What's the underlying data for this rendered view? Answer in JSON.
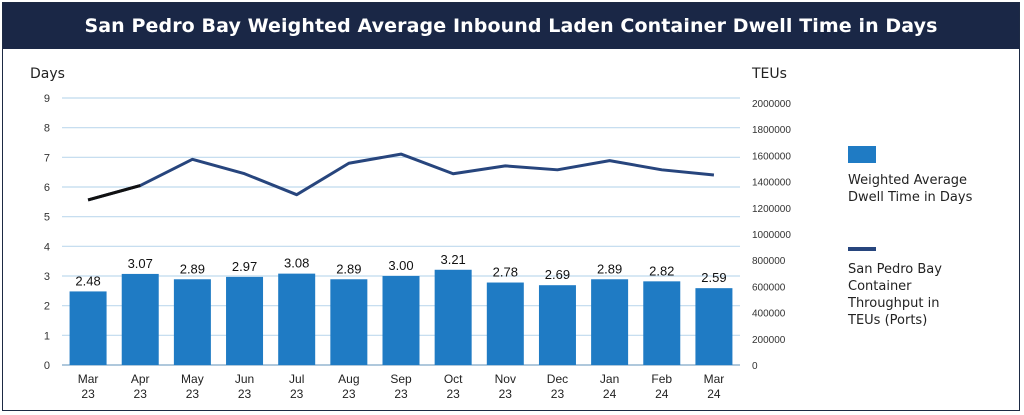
{
  "chart_data": {
    "type": "bar",
    "title": "San Pedro Bay Weighted Average Inbound Laden Container Dwell Time in Days",
    "ylabel_left": "Days",
    "ylabel_right": "TEUs",
    "ylim_left": [
      0,
      9
    ],
    "ylim_right": [
      0,
      2000000
    ],
    "left_ticks": [
      "0",
      "1",
      "2",
      "3",
      "4",
      "5",
      "6",
      "7",
      "8",
      "9"
    ],
    "right_ticks": [
      "0",
      "200000",
      "400000",
      "600000",
      "800000",
      "1000000",
      "1200000",
      "1400000",
      "1600000",
      "1800000",
      "2000000"
    ],
    "categories": [
      [
        "Mar",
        "23"
      ],
      [
        "Apr",
        "23"
      ],
      [
        "May",
        "23"
      ],
      [
        "Jun",
        "23"
      ],
      [
        "Jul",
        "23"
      ],
      [
        "Aug",
        "23"
      ],
      [
        "Sep",
        "23"
      ],
      [
        "Oct",
        "23"
      ],
      [
        "Nov",
        "23"
      ],
      [
        "Dec",
        "23"
      ],
      [
        "Jan",
        "24"
      ],
      [
        "Feb",
        "24"
      ],
      [
        "Mar",
        "24"
      ]
    ],
    "series": [
      {
        "name": "Weighted Average Dwell Time in Days",
        "type": "bar",
        "axis": "left",
        "color": "#1f7bc4",
        "values": [
          2.48,
          3.07,
          2.89,
          2.97,
          3.08,
          2.89,
          3.0,
          3.21,
          2.78,
          2.69,
          2.89,
          2.82,
          2.59
        ],
        "labels": [
          "2.48",
          "3.07",
          "2.89",
          "2.97",
          "3.08",
          "2.89",
          "3.00",
          "3.21",
          "2.78",
          "2.69",
          "2.89",
          "2.82",
          "2.59"
        ]
      },
      {
        "name": "San Pedro Bay Container Throughput in TEUs (Ports)",
        "type": "line",
        "axis": "right",
        "color": "#27457d",
        "values": [
          1260000,
          1370000,
          1570000,
          1460000,
          1300000,
          1540000,
          1610000,
          1460000,
          1520000,
          1490000,
          1560000,
          1490000,
          1450000
        ]
      }
    ],
    "legend": [
      {
        "label_lines": [
          "Weighted Average",
          "Dwell Time in Days"
        ],
        "color": "#1f7bc4",
        "symbol": "box"
      },
      {
        "label_lines": [
          "San Pedro Bay",
          "Container",
          "Throughput in",
          "TEUs (Ports)"
        ],
        "color": "#27457d",
        "symbol": "line"
      }
    ],
    "legend_placement": "right",
    "grid": true,
    "grid_color": "#bfd9ee"
  }
}
